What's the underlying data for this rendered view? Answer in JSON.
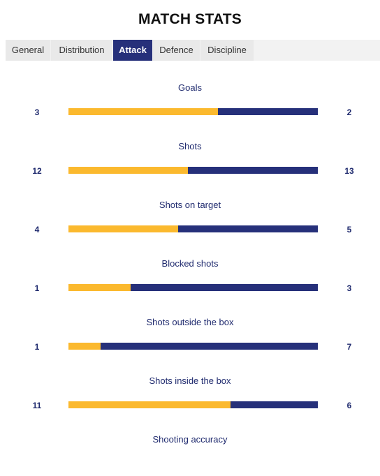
{
  "page_title": "MATCH STATS",
  "tabs": [
    {
      "label": "General",
      "active": false
    },
    {
      "label": "Distribution",
      "active": false
    },
    {
      "label": "Attack",
      "active": true
    },
    {
      "label": "Defence",
      "active": false
    },
    {
      "label": "Discipline",
      "active": false
    }
  ],
  "colors": {
    "home": "#fbb92e",
    "away": "#26307a",
    "text": "#1f2a6e"
  },
  "stats": [
    {
      "label": "Goals",
      "home": 3,
      "away": 2,
      "home_share": 0.6
    },
    {
      "label": "Shots",
      "home": 12,
      "away": 13,
      "home_share": 0.48
    },
    {
      "label": "Shots on target",
      "home": 4,
      "away": 5,
      "home_share": 0.44
    },
    {
      "label": "Blocked shots",
      "home": 1,
      "away": 3,
      "home_share": 0.25
    },
    {
      "label": "Shots outside the box",
      "home": 1,
      "away": 7,
      "home_share": 0.13
    },
    {
      "label": "Shots inside the box",
      "home": 11,
      "away": 6,
      "home_share": 0.65
    },
    {
      "label": "Shooting accuracy"
    }
  ]
}
